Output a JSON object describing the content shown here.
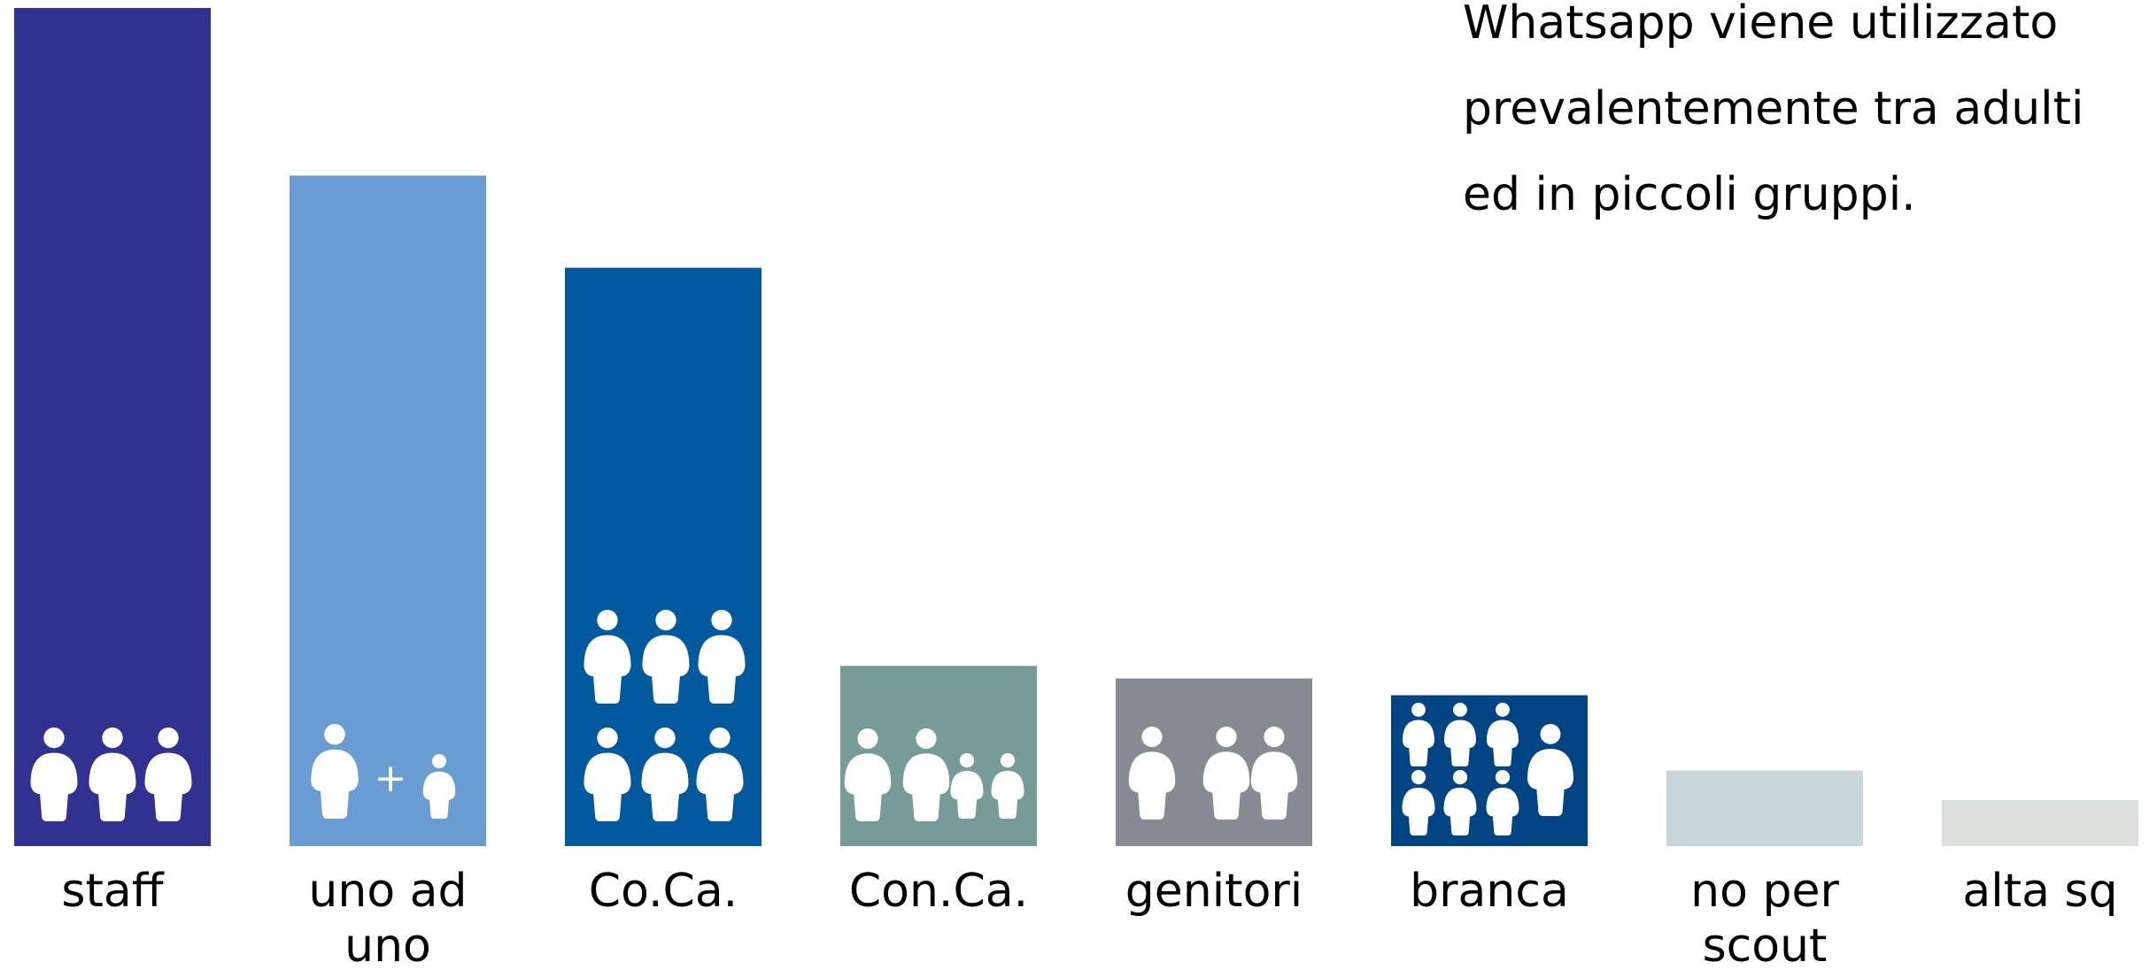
{
  "chart_data": {
    "type": "bar",
    "title": "",
    "xlabel": "",
    "ylabel": "",
    "categories": [
      [
        "staff"
      ],
      [
        "uno ad",
        "uno"
      ],
      [
        "Co.Ca."
      ],
      [
        "Con.Ca."
      ],
      [
        "genitori"
      ],
      [
        "branca"
      ],
      [
        "no per",
        "scout"
      ],
      [
        "alta sq"
      ]
    ],
    "values": [
      100,
      80,
      69,
      21.5,
      20,
      18,
      9,
      5.5
    ],
    "ylim": [
      0,
      100
    ],
    "colors": [
      "#313192",
      "#699CD3",
      "#02599D",
      "#779B99",
      "#868A92",
      "#004484",
      "#C8D5DB",
      "#DCE0DD"
    ],
    "icons": [
      "three-adults-icon",
      "adult-plus-child-icon",
      "six-adults-icon",
      "two-adults-two-children-icon",
      "adult-and-couple-icon",
      "children-group-with-adult-icon",
      "",
      ""
    ],
    "grid": false,
    "legend": "none",
    "annotation": {
      "lines": [
        "Whatsapp viene utilizzato",
        "prevalentemente tra adulti",
        "ed in piccoli gruppi."
      ]
    }
  }
}
